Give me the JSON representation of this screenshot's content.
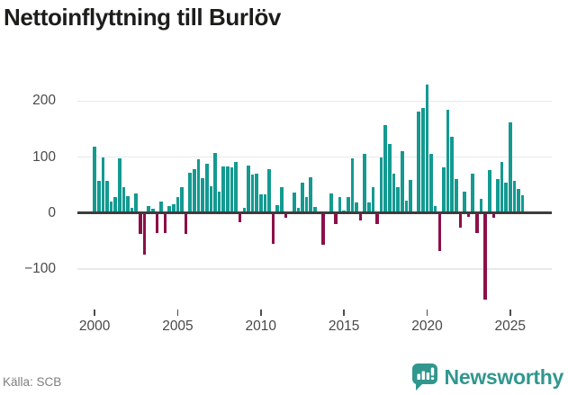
{
  "chart_data": {
    "type": "bar",
    "title": "Nettoinflyttning till Burlöv",
    "frequency": "quarterly",
    "start_year": 2000,
    "series_by_year": [
      {
        "year": 2000,
        "values": [
          118,
          58,
          100,
          57
        ]
      },
      {
        "year": 2001,
        "values": [
          21,
          29,
          97,
          47
        ]
      },
      {
        "year": 2002,
        "values": [
          30,
          10,
          35,
          -37
        ]
      },
      {
        "year": 2003,
        "values": [
          -75,
          13,
          8,
          -35
        ]
      },
      {
        "year": 2004,
        "values": [
          21,
          -35,
          13,
          15
        ]
      },
      {
        "year": 2005,
        "values": [
          28,
          47,
          -37,
          72
        ]
      },
      {
        "year": 2006,
        "values": [
          78,
          96,
          63,
          88
        ]
      },
      {
        "year": 2007,
        "values": [
          48,
          107,
          39,
          83
        ]
      },
      {
        "year": 2008,
        "values": [
          83,
          81,
          91,
          -17
        ]
      },
      {
        "year": 2009,
        "values": [
          10,
          85,
          69,
          70
        ]
      },
      {
        "year": 2010,
        "values": [
          34,
          34,
          79,
          -55
        ]
      },
      {
        "year": 2011,
        "values": [
          14,
          46,
          -8,
          0
        ]
      },
      {
        "year": 2012,
        "values": [
          36,
          10,
          55,
          28
        ]
      },
      {
        "year": 2013,
        "values": [
          64,
          11,
          0,
          -57
        ]
      },
      {
        "year": 2014,
        "values": [
          0,
          35,
          -20,
          28
        ]
      },
      {
        "year": 2015,
        "values": [
          5,
          29,
          98,
          19
        ]
      },
      {
        "year": 2016,
        "values": [
          -13,
          105,
          19,
          46
        ]
      },
      {
        "year": 2017,
        "values": [
          -20,
          100,
          157,
          123
        ]
      },
      {
        "year": 2018,
        "values": [
          71,
          47,
          111,
          22
        ]
      },
      {
        "year": 2019,
        "values": [
          59,
          0,
          181,
          187
        ]
      },
      {
        "year": 2020,
        "values": [
          230,
          105,
          12,
          -67
        ]
      },
      {
        "year": 2021,
        "values": [
          81,
          185,
          136,
          61
        ]
      },
      {
        "year": 2022,
        "values": [
          -26,
          38,
          -7,
          70
        ]
      },
      {
        "year": 2023,
        "values": [
          -36,
          25,
          -155,
          77
        ]
      },
      {
        "year": 2024,
        "values": [
          -8,
          60,
          92,
          55
        ]
      },
      {
        "year": 2025,
        "values": [
          162,
          58,
          43,
          31
        ]
      },
      {
        "year": 2026,
        "values": []
      }
    ],
    "ytick_values": [
      200,
      100,
      0,
      -100
    ],
    "ytick_labels": [
      "200",
      "100",
      "0",
      "−100"
    ],
    "xtick_years": [
      2000,
      2005,
      2010,
      2015,
      2020,
      2025
    ],
    "xtick_labels": [
      "2000",
      "2005",
      "2010",
      "2015",
      "2020",
      "2025"
    ],
    "ylim": [
      -170,
      245
    ],
    "grid": true,
    "legend": "none",
    "xlabel": "",
    "ylabel": ""
  },
  "colors": {
    "bar_positive": "#149A91",
    "bar_negative": "#8C1048",
    "zero_axis": "#3d3d3d",
    "gridline": "#e9e9e9",
    "brand_teal": "#31978E",
    "background": "#ffffff"
  },
  "footer": {
    "source": "Källa: SCB",
    "brand": "Newsworthy"
  }
}
